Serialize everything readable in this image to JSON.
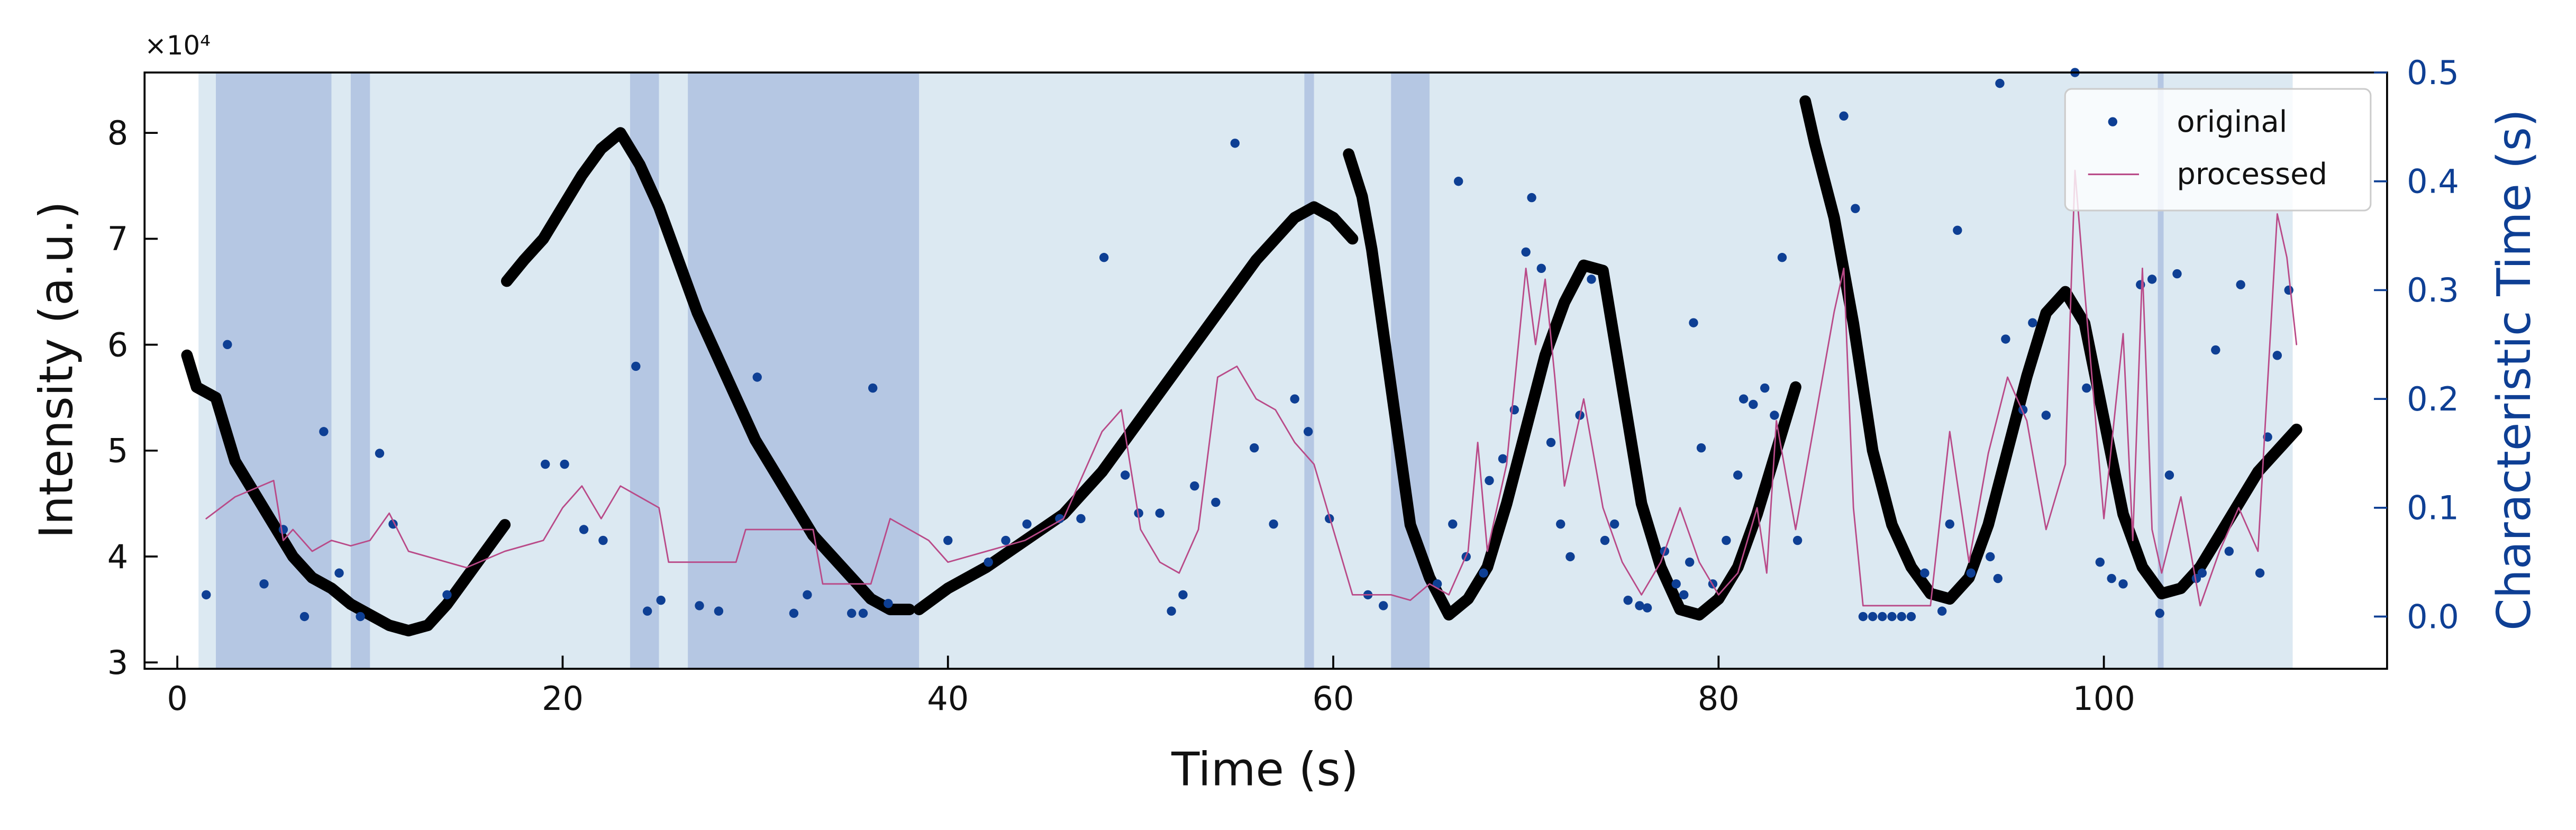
{
  "chart_data": {
    "type": "line",
    "x_label": "Time (s)",
    "y_label": "Intensity (a.u.)",
    "y2_label": "Characteristic Time (s)",
    "y_offset_label": "×10⁴",
    "xlim": [
      -1.7,
      114.7
    ],
    "xticks": [
      0,
      20,
      40,
      60,
      80,
      100
    ],
    "ylim": [
      2.94,
      8.57
    ],
    "yticks": [
      3,
      4,
      5,
      6,
      7,
      8
    ],
    "y2lim": [
      -0.048,
      0.5
    ],
    "y2ticks": [
      {
        "value": 0,
        "label": "0.0"
      },
      0.1,
      0.2,
      0.3,
      0.4,
      0.5
    ],
    "y2_color": "#0e3f94",
    "legend": "upper right",
    "background_span": [
      1.1,
      109.8
    ],
    "background_color": "#dce9f2",
    "highlight_spans": [
      [
        2,
        8
      ],
      [
        9,
        10
      ],
      [
        23.5,
        25
      ],
      [
        26.5,
        38.5
      ],
      [
        58.5,
        59
      ],
      [
        63,
        65
      ],
      [
        102.8,
        103.1
      ]
    ],
    "highlight_color": "#b5c7e3",
    "series": [
      {
        "type": "line",
        "color": "#000000",
        "x": [
          0.5,
          1,
          2,
          3,
          4,
          5,
          6,
          7,
          8,
          9,
          10,
          11,
          12,
          13,
          14,
          15,
          16,
          17,
          null,
          17.1,
          18,
          19,
          20,
          21,
          22,
          23,
          24,
          25,
          26,
          27,
          28,
          29,
          30,
          31,
          32,
          33,
          34,
          35,
          36,
          37,
          38,
          null,
          38.5,
          40,
          42,
          44,
          46,
          48,
          50,
          52,
          54,
          56,
          58,
          59,
          60,
          61,
          null,
          60.8,
          61.5,
          62,
          63,
          64,
          65,
          66,
          67,
          68,
          69,
          70,
          71,
          72,
          73,
          74,
          75,
          76,
          77,
          78,
          79,
          80,
          81,
          82,
          83,
          84,
          null,
          84.5,
          85,
          86,
          87,
          88,
          89,
          90,
          91,
          92,
          93,
          94,
          95,
          96,
          97,
          98,
          99,
          100,
          101,
          102,
          103,
          104,
          105,
          106,
          107,
          108,
          109,
          110
        ],
        "values": [
          5.9,
          5.6,
          5.5,
          4.9,
          4.6,
          4.3,
          4.0,
          3.8,
          3.7,
          3.55,
          3.45,
          3.35,
          3.3,
          3.35,
          3.55,
          3.8,
          4.05,
          4.3,
          null,
          6.6,
          6.8,
          7.0,
          7.3,
          7.6,
          7.85,
          8.0,
          7.7,
          7.3,
          6.8,
          6.3,
          5.9,
          5.5,
          5.1,
          4.8,
          4.5,
          4.2,
          4.0,
          3.8,
          3.6,
          3.5,
          3.5,
          null,
          3.5,
          3.7,
          3.9,
          4.15,
          4.4,
          4.8,
          5.3,
          5.8,
          6.3,
          6.8,
          7.2,
          7.3,
          7.2,
          7.0,
          null,
          7.8,
          7.4,
          6.9,
          5.6,
          4.3,
          3.8,
          3.45,
          3.6,
          3.9,
          4.5,
          5.2,
          5.9,
          6.4,
          6.75,
          6.7,
          5.6,
          4.5,
          3.9,
          3.5,
          3.45,
          3.6,
          3.9,
          4.4,
          5.0,
          5.6,
          null,
          8.3,
          7.9,
          7.2,
          6.2,
          5.0,
          4.3,
          3.9,
          3.65,
          3.6,
          3.8,
          4.3,
          5.0,
          5.7,
          6.3,
          6.5,
          6.2,
          5.3,
          4.4,
          3.9,
          3.65,
          3.7,
          3.9,
          4.2,
          4.5,
          4.8,
          5.0,
          5.2
        ]
      },
      {
        "type": "scatter",
        "name": "original",
        "color": "#0e3f94",
        "axis": "y2",
        "x": [
          1.5,
          2.6,
          4.5,
          5.5,
          6.6,
          7.6,
          8.4,
          9.5,
          10.5,
          11.2,
          14,
          19.1,
          20.1,
          21.1,
          22.1,
          23.8,
          24.4,
          25.1,
          27.1,
          28.1,
          30.1,
          32,
          32.7,
          35,
          35.6,
          36.1,
          36.9,
          40,
          42.1,
          43,
          44.1,
          45.8,
          46.9,
          48.1,
          49.2,
          49.9,
          51,
          51.6,
          52.2,
          52.8,
          53.9,
          54.9,
          55.9,
          56.9,
          58,
          58.7,
          59.8,
          61.8,
          62.6,
          65.4,
          66.2,
          66.5,
          66.9,
          67.8,
          68.1,
          68.8,
          69.4,
          70,
          70.3,
          70.8,
          71.3,
          71.8,
          72.3,
          72.8,
          73.4,
          74.1,
          74.6,
          75.3,
          75.9,
          76.3,
          77.2,
          77.8,
          78.2,
          78.5,
          78.7,
          79.1,
          79.7,
          80.4,
          81,
          81.3,
          81.8,
          82.4,
          82.9,
          83.3,
          84.1,
          86.5,
          87.1,
          87.5,
          88,
          88.5,
          89,
          89.5,
          90,
          90.7,
          91.6,
          92,
          92.4,
          93.1,
          94.1,
          94.5,
          94.6,
          94.9,
          95.8,
          96.3,
          97,
          98.5,
          99.1,
          99.8,
          100.4,
          101,
          101.9,
          102.5,
          102.9,
          103.4,
          103.8,
          104.8,
          105.1,
          105.8,
          106.5,
          107.1,
          108.1,
          108.5,
          109,
          109.6
        ],
        "values": [
          0.02,
          0.25,
          0.03,
          0.08,
          0.0,
          0.17,
          0.04,
          0.0,
          0.15,
          0.085,
          0.02,
          0.14,
          0.14,
          0.08,
          0.07,
          0.23,
          0.005,
          0.015,
          0.01,
          0.005,
          0.22,
          0.003,
          0.02,
          0.003,
          0.003,
          0.21,
          0.012,
          0.07,
          0.05,
          0.07,
          0.085,
          0.09,
          0.09,
          0.33,
          0.13,
          0.095,
          0.095,
          0.005,
          0.02,
          0.12,
          0.105,
          0.435,
          0.155,
          0.085,
          0.2,
          0.17,
          0.09,
          0.02,
          0.01,
          0.03,
          0.085,
          0.4,
          0.055,
          0.04,
          0.125,
          0.145,
          0.19,
          0.335,
          0.385,
          0.32,
          0.16,
          0.085,
          0.055,
          0.185,
          0.31,
          0.07,
          0.085,
          0.015,
          0.01,
          0.008,
          0.06,
          0.03,
          0.02,
          0.05,
          0.27,
          0.155,
          0.03,
          0.07,
          0.13,
          0.2,
          0.195,
          0.21,
          0.185,
          0.33,
          0.07,
          0.46,
          0.375,
          0.0,
          0.0,
          0.0,
          0.0,
          0.0,
          0.0,
          0.04,
          0.005,
          0.085,
          0.355,
          0.04,
          0.055,
          0.035,
          0.49,
          0.255,
          0.19,
          0.27,
          0.185,
          0.5,
          0.21,
          0.05,
          0.035,
          0.03,
          0.305,
          0.31,
          0.003,
          0.13,
          0.315,
          0.035,
          0.04,
          0.245,
          0.06,
          0.305,
          0.04,
          0.165,
          0.24,
          0.3
        ]
      },
      {
        "type": "line",
        "name": "processed",
        "color": "#b94a88",
        "axis": "y2",
        "x": [
          1.5,
          3,
          5,
          5.5,
          6,
          7,
          8,
          9,
          10,
          11,
          12,
          13,
          15,
          17,
          19,
          20,
          21,
          22,
          23,
          24,
          25,
          25.5,
          27,
          29,
          29.5,
          33,
          33.5,
          36,
          37,
          38,
          39,
          40,
          42,
          44,
          46,
          48,
          49,
          50,
          51,
          52,
          53,
          54,
          55,
          56,
          57,
          58,
          59,
          60,
          61,
          62,
          63,
          64,
          65,
          66,
          67,
          67.5,
          68,
          69,
          70,
          70.5,
          71,
          71.5,
          72,
          73,
          74,
          75,
          76,
          77,
          78,
          79,
          80,
          81,
          82,
          82.5,
          83,
          84,
          85,
          86,
          86.5,
          87,
          87.5,
          90,
          91,
          92,
          93,
          94,
          95,
          96,
          97,
          98,
          98.5,
          99,
          100,
          101,
          101.5,
          102,
          102.5,
          103,
          104,
          105,
          106,
          107,
          108,
          109,
          109.5,
          110
        ],
        "values": [
          0.09,
          0.11,
          0.125,
          0.07,
          0.08,
          0.06,
          0.07,
          0.065,
          0.07,
          0.095,
          0.06,
          0.055,
          0.045,
          0.06,
          0.07,
          0.1,
          0.12,
          0.09,
          0.12,
          0.11,
          0.1,
          0.05,
          0.05,
          0.05,
          0.08,
          0.08,
          0.03,
          0.03,
          0.09,
          0.08,
          0.07,
          0.05,
          0.06,
          0.07,
          0.09,
          0.17,
          0.19,
          0.08,
          0.05,
          0.04,
          0.08,
          0.22,
          0.23,
          0.2,
          0.19,
          0.16,
          0.14,
          0.08,
          0.02,
          0.02,
          0.02,
          0.015,
          0.03,
          0.02,
          0.06,
          0.16,
          0.06,
          0.14,
          0.32,
          0.25,
          0.31,
          0.22,
          0.12,
          0.2,
          0.1,
          0.05,
          0.02,
          0.05,
          0.1,
          0.05,
          0.02,
          0.04,
          0.1,
          0.04,
          0.18,
          0.08,
          0.18,
          0.28,
          0.32,
          0.1,
          0.01,
          0.01,
          0.01,
          0.17,
          0.05,
          0.15,
          0.22,
          0.18,
          0.08,
          0.14,
          0.41,
          0.3,
          0.09,
          0.26,
          0.07,
          0.32,
          0.08,
          0.04,
          0.11,
          0.01,
          0.06,
          0.1,
          0.06,
          0.37,
          0.33,
          0.25
        ]
      }
    ]
  }
}
